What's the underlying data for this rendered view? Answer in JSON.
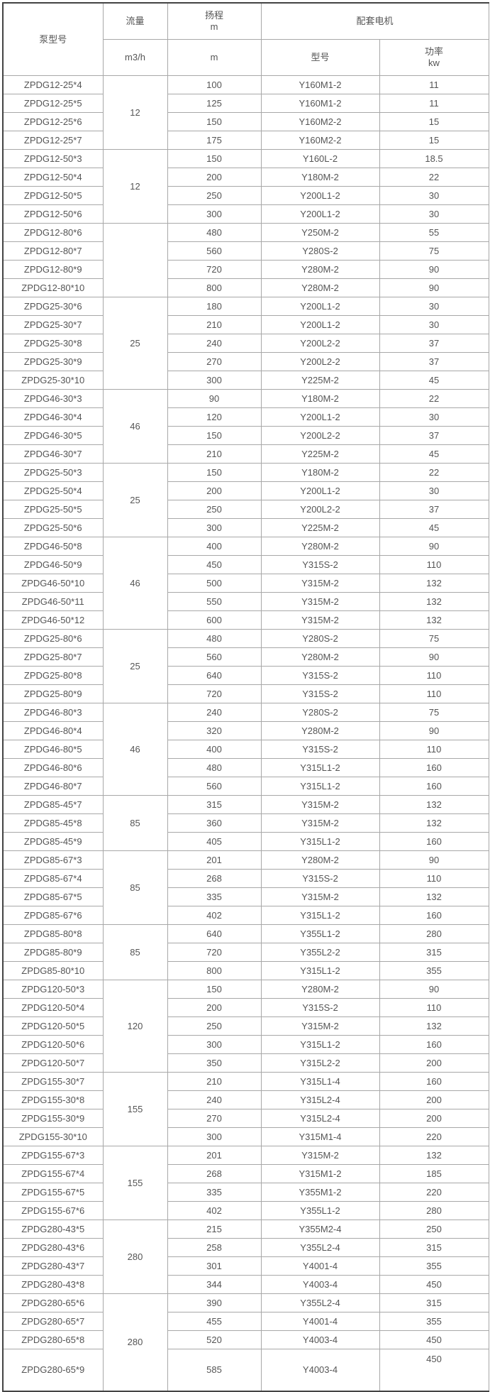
{
  "header": {
    "model": "泵型号",
    "flow": "流量",
    "flow_unit": "m3/h",
    "head": "扬程",
    "head_unit_top": "m",
    "head_unit": "m",
    "motor": "配套电机",
    "motor_model": "型号",
    "power": "功率",
    "power_unit": "kw"
  },
  "groups": [
    {
      "flow": "12",
      "rows": [
        [
          "ZPDG12-25*4",
          "100",
          "Y160M1-2",
          "11"
        ],
        [
          "ZPDG12-25*5",
          "125",
          "Y160M1-2",
          "11"
        ],
        [
          "ZPDG12-25*6",
          "150",
          "Y160M2-2",
          "15"
        ],
        [
          "ZPDG12-25*7",
          "175",
          "Y160M2-2",
          "15"
        ]
      ]
    },
    {
      "flow": "12",
      "rows": [
        [
          "ZPDG12-50*3",
          "150",
          "Y160L-2",
          "18.5"
        ],
        [
          "ZPDG12-50*4",
          "200",
          "Y180M-2",
          "22"
        ],
        [
          "ZPDG12-50*5",
          "250",
          "Y200L1-2",
          "30"
        ],
        [
          "ZPDG12-50*6",
          "300",
          "Y200L1-2",
          "30"
        ]
      ]
    },
    {
      "flow": "",
      "rows": [
        [
          "ZPDG12-80*6",
          "480",
          "Y250M-2",
          "55"
        ],
        [
          "ZPDG12-80*7",
          "560",
          "Y280S-2",
          "75"
        ],
        [
          "ZPDG12-80*9",
          "720",
          "Y280M-2",
          "90"
        ],
        [
          "ZPDG12-80*10",
          "800",
          "Y280M-2",
          "90"
        ]
      ]
    },
    {
      "flow": "25",
      "rows": [
        [
          "ZPDG25-30*6",
          "180",
          "Y200L1-2",
          "30"
        ],
        [
          "ZPDG25-30*7",
          "210",
          "Y200L1-2",
          "30"
        ],
        [
          "ZPDG25-30*8",
          "240",
          "Y200L2-2",
          "37"
        ],
        [
          "ZPDG25-30*9",
          "270",
          "Y200L2-2",
          "37"
        ],
        [
          "ZPDG25-30*10",
          "300",
          "Y225M-2",
          "45"
        ]
      ]
    },
    {
      "flow": "46",
      "rows": [
        [
          "ZPDG46-30*3",
          "90",
          "Y180M-2",
          "22"
        ],
        [
          "ZPDG46-30*4",
          "120",
          "Y200L1-2",
          "30"
        ],
        [
          "ZPDG46-30*5",
          "150",
          "Y200L2-2",
          "37"
        ],
        [
          "ZPDG46-30*7",
          "210",
          "Y225M-2",
          "45"
        ]
      ]
    },
    {
      "flow": "25",
      "rows": [
        [
          "ZPDG25-50*3",
          "150",
          "Y180M-2",
          "22"
        ],
        [
          "ZPDG25-50*4",
          "200",
          "Y200L1-2",
          "30"
        ],
        [
          "ZPDG25-50*5",
          "250",
          "Y200L2-2",
          "37"
        ],
        [
          "ZPDG25-50*6",
          "300",
          "Y225M-2",
          "45"
        ]
      ]
    },
    {
      "flow": "46",
      "rows": [
        [
          "ZPDG46-50*8",
          "400",
          "Y280M-2",
          "90"
        ],
        [
          "ZPDG46-50*9",
          "450",
          "Y315S-2",
          "110"
        ],
        [
          "ZPDG46-50*10",
          "500",
          "Y315M-2",
          "132"
        ],
        [
          "ZPDG46-50*11",
          "550",
          "Y315M-2",
          "132"
        ],
        [
          "ZPDG46-50*12",
          "600",
          "Y315M-2",
          "132"
        ]
      ]
    },
    {
      "flow": "25",
      "rows": [
        [
          "ZPDG25-80*6",
          "480",
          "Y280S-2",
          "75"
        ],
        [
          "ZPDG25-80*7",
          "560",
          "Y280M-2",
          "90"
        ],
        [
          "ZPDG25-80*8",
          "640",
          "Y315S-2",
          "110"
        ],
        [
          "ZPDG25-80*9",
          "720",
          "Y315S-2",
          "110"
        ]
      ]
    },
    {
      "flow": "46",
      "rows": [
        [
          "ZPDG46-80*3",
          "240",
          "Y280S-2",
          "75"
        ],
        [
          "ZPDG46-80*4",
          "320",
          "Y280M-2",
          "90"
        ],
        [
          "ZPDG46-80*5",
          "400",
          "Y315S-2",
          "110"
        ],
        [
          "ZPDG46-80*6",
          "480",
          "Y315L1-2",
          "160"
        ],
        [
          "ZPDG46-80*7",
          "560",
          "Y315L1-2",
          "160"
        ]
      ]
    },
    {
      "flow": "85",
      "rows": [
        [
          "ZPDG85-45*7",
          "315",
          "Y315M-2",
          "132"
        ],
        [
          "ZPDG85-45*8",
          "360",
          "Y315M-2",
          "132"
        ],
        [
          "ZPDG85-45*9",
          "405",
          "Y315L1-2",
          "160"
        ]
      ]
    },
    {
      "flow": "85",
      "rows": [
        [
          "ZPDG85-67*3",
          "201",
          "Y280M-2",
          "90"
        ],
        [
          "ZPDG85-67*4",
          "268",
          "Y315S-2",
          "110"
        ],
        [
          "ZPDG85-67*5",
          "335",
          "Y315M-2",
          "132"
        ],
        [
          "ZPDG85-67*6",
          "402",
          "Y315L1-2",
          "160"
        ]
      ]
    },
    {
      "flow": "85",
      "rows": [
        [
          "ZPDG85-80*8",
          "640",
          "Y355L1-2",
          "280"
        ],
        [
          "ZPDG85-80*9",
          "720",
          "Y355L2-2",
          "315"
        ],
        [
          "ZPDG85-80*10",
          "800",
          "Y315L1-2",
          "355"
        ]
      ]
    },
    {
      "flow": "120",
      "rows": [
        [
          "ZPDG120-50*3",
          "150",
          "Y280M-2",
          "90"
        ],
        [
          "ZPDG120-50*4",
          "200",
          "Y315S-2",
          "110"
        ],
        [
          "ZPDG120-50*5",
          "250",
          "Y315M-2",
          "132"
        ],
        [
          "ZPDG120-50*6",
          "300",
          "Y315L1-2",
          "160"
        ],
        [
          "ZPDG120-50*7",
          "350",
          "Y315L2-2",
          "200"
        ]
      ]
    },
    {
      "flow": "155",
      "rows": [
        [
          "ZPDG155-30*7",
          "210",
          "Y315L1-4",
          "160"
        ],
        [
          "ZPDG155-30*8",
          "240",
          "Y315L2-4",
          "200"
        ],
        [
          "ZPDG155-30*9",
          "270",
          "Y315L2-4",
          "200"
        ],
        [
          "ZPDG155-30*10",
          "300",
          "Y315M1-4",
          "220"
        ]
      ]
    },
    {
      "flow": "155",
      "rows": [
        [
          "ZPDG155-67*3",
          "201",
          "Y315M-2",
          "132"
        ],
        [
          "ZPDG155-67*4",
          "268",
          "Y315M1-2",
          "185"
        ],
        [
          "ZPDG155-67*5",
          "335",
          "Y355M1-2",
          "220"
        ],
        [
          "ZPDG155-67*6",
          "402",
          "Y355L1-2",
          "280"
        ]
      ]
    },
    {
      "flow": "280",
      "rows": [
        [
          "ZPDG280-43*5",
          "215",
          "Y355M2-4",
          "250"
        ],
        [
          "ZPDG280-43*6",
          "258",
          "Y355L2-4",
          "315"
        ],
        [
          "ZPDG280-43*7",
          "301",
          "Y4001-4",
          "355"
        ],
        [
          "ZPDG280-43*8",
          "344",
          "Y4003-4",
          "450"
        ]
      ]
    },
    {
      "flow": "280",
      "rows": [
        [
          "ZPDG280-65*6",
          "390",
          "Y355L2-4",
          "315"
        ],
        [
          "ZPDG280-65*7",
          "455",
          "Y4001-4",
          "355"
        ],
        [
          "ZPDG280-65*8",
          "520",
          "Y4003-4",
          "450"
        ],
        [
          "ZPDG280-65*9",
          "585",
          "Y4003-4",
          "450"
        ]
      ]
    }
  ]
}
